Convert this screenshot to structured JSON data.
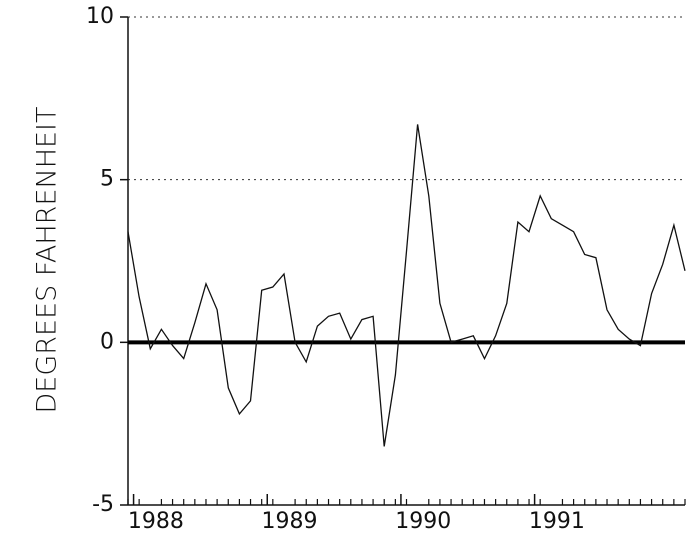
{
  "chart_data": {
    "type": "line",
    "y_label": "DEGREES FAHRENHEIT",
    "categories": [
      null,
      null,
      "1988",
      null,
      null,
      null,
      null,
      null,
      null,
      null,
      null,
      null,
      null,
      null,
      "1989",
      null,
      null,
      null,
      null,
      null,
      null,
      null,
      null,
      null,
      null,
      null,
      "1990",
      null,
      null,
      null,
      null,
      null,
      null,
      null,
      null,
      null,
      null,
      null,
      "1991",
      null,
      null,
      null,
      null,
      null,
      null,
      null,
      null,
      null,
      null,
      null,
      null
    ],
    "values": [
      3.4,
      1.4,
      -0.2,
      0.4,
      -0.1,
      -0.5,
      0.6,
      1.8,
      1.0,
      -1.4,
      -2.2,
      -1.8,
      1.6,
      1.7,
      2.1,
      0.0,
      -0.6,
      0.5,
      0.8,
      0.9,
      0.1,
      0.7,
      0.8,
      -3.2,
      -1.0,
      2.8,
      6.7,
      4.5,
      1.2,
      0.0,
      0.1,
      0.2,
      -0.5,
      0.2,
      1.2,
      3.7,
      3.4,
      4.5,
      3.8,
      3.6,
      3.4,
      2.7,
      2.6,
      1.0,
      0.4,
      0.1,
      -0.1,
      1.5,
      2.4,
      3.6,
      2.2
    ],
    "color": "#111111",
    "ylim": [
      -5,
      10
    ],
    "yticks": [
      -5,
      0,
      5,
      10
    ],
    "grid": true
  }
}
